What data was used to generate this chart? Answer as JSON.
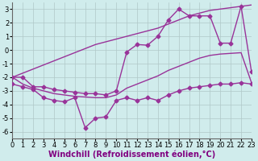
{
  "x": [
    0,
    1,
    2,
    3,
    4,
    5,
    6,
    7,
    8,
    9,
    10,
    11,
    12,
    13,
    14,
    15,
    16,
    17,
    18,
    19,
    20,
    21,
    22,
    23
  ],
  "line_smooth_top": [
    -2.0,
    -1.7,
    -1.4,
    -1.1,
    -0.8,
    -0.5,
    -0.2,
    0.1,
    0.4,
    0.6,
    0.8,
    1.0,
    1.2,
    1.4,
    1.6,
    1.9,
    2.2,
    2.5,
    2.7,
    2.9,
    3.0,
    3.1,
    3.2,
    3.3
  ],
  "line_upper_jagged": [
    -2.0,
    -2.0,
    -2.7,
    -2.7,
    -2.9,
    -3.0,
    -3.1,
    -3.2,
    -3.2,
    -3.3,
    -3.0,
    -0.15,
    0.4,
    0.35,
    1.0,
    2.2,
    3.0,
    2.5,
    2.5,
    2.5,
    0.5,
    0.5,
    3.2,
    -1.6
  ],
  "line_smooth_mid": [
    -2.0,
    -2.5,
    -2.8,
    -3.0,
    -3.2,
    -3.3,
    -3.4,
    -3.45,
    -3.5,
    -3.5,
    -3.3,
    -2.8,
    -2.5,
    -2.2,
    -1.9,
    -1.5,
    -1.2,
    -0.9,
    -0.6,
    -0.4,
    -0.3,
    -0.25,
    -0.2,
    -2.4
  ],
  "line_lower_jagged": [
    -2.5,
    -2.7,
    -2.9,
    -3.5,
    -3.7,
    -3.8,
    -3.5,
    -5.7,
    -5.0,
    -4.9,
    -3.7,
    -3.5,
    -3.7,
    -3.5,
    -3.7,
    -3.3,
    -3.0,
    -2.8,
    -2.7,
    -2.6,
    -2.5,
    -2.5,
    -2.4,
    -2.5
  ],
  "color": "#993399",
  "bg_color": "#d0ecec",
  "grid_color": "#b0c8c8",
  "xlabel": "Windchill (Refroidissement éolien,°C)",
  "xlim": [
    0,
    23
  ],
  "ylim": [
    -6.5,
    3.5
  ],
  "xticks": [
    0,
    1,
    2,
    3,
    4,
    5,
    6,
    7,
    8,
    9,
    10,
    11,
    12,
    13,
    14,
    15,
    16,
    17,
    18,
    19,
    20,
    21,
    22,
    23
  ],
  "yticks": [
    -6,
    -5,
    -4,
    -3,
    -2,
    -1,
    0,
    1,
    2,
    3
  ],
  "xlabel_fontsize": 7,
  "tick_fontsize": 6,
  "linewidth": 1.0,
  "markersize": 2.5
}
